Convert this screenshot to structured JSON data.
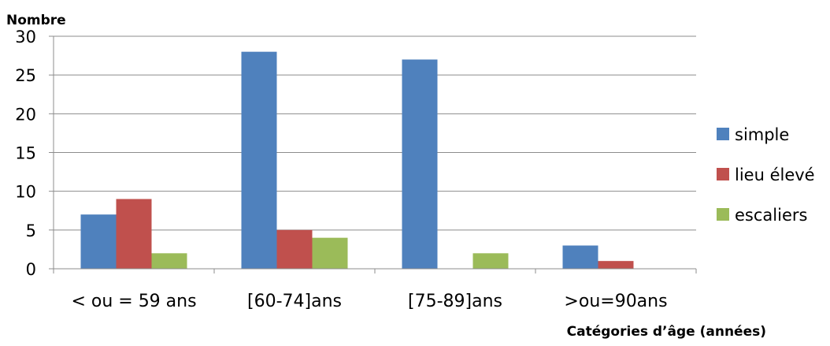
{
  "chart_data": {
    "type": "bar",
    "ylabel": "Nombre",
    "xlabel": "Catégories d’âge (années)",
    "categories": [
      "< ou = 59 ans",
      "[60-74]ans",
      "[75-89]ans",
      ">ou=90ans"
    ],
    "series": [
      {
        "name": "simple",
        "values": [
          7,
          28,
          27,
          3
        ],
        "color": "#4f81bd"
      },
      {
        "name": "lieu élevé",
        "values": [
          9,
          5,
          0,
          1
        ],
        "color": "#c0504d"
      },
      {
        "name": "escaliers",
        "values": [
          2,
          4,
          2,
          0
        ],
        "color": "#9bbb59"
      }
    ],
    "ylim": [
      0,
      30
    ],
    "yticks": [
      0,
      5,
      10,
      15,
      20,
      25,
      30
    ],
    "grid": true,
    "legend_position": "right"
  }
}
